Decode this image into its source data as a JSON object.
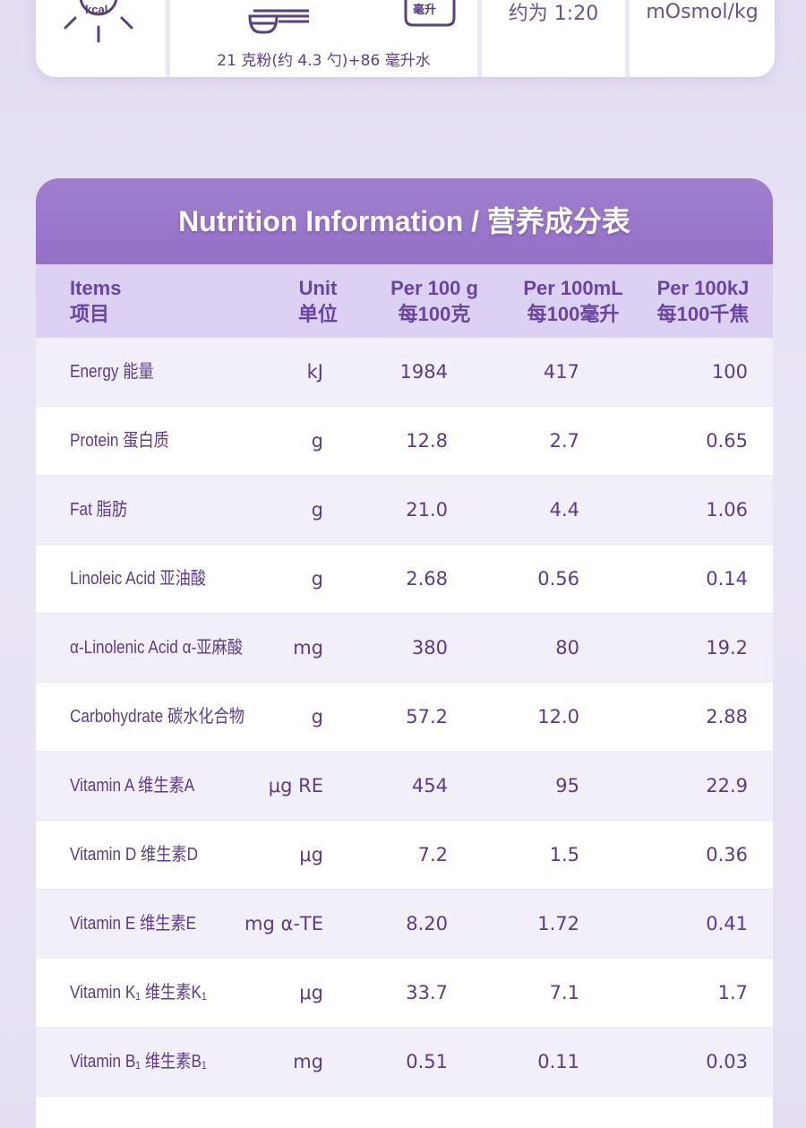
{
  "top_card": {
    "kcal_icon_text": "kcal",
    "cup_icon_text": "毫升",
    "formula": "21 克粉(约 4.3 勺)+86 毫升水",
    "ratio": "约为 1:20",
    "osmolality_unit": "mOsmol/kg"
  },
  "table": {
    "title": "Nutrition Information / 营养成分表",
    "headers": {
      "items_en": "Items",
      "items_cn": "项目",
      "unit_en": "Unit",
      "unit_cn": "单位",
      "per_g_en": "Per 100 g",
      "per_g_cn": "每100克",
      "per_ml_en": "Per 100mL",
      "per_ml_cn": "每100毫升",
      "per_kj_en": "Per 100kJ",
      "per_kj_cn": "每100千焦"
    },
    "rows": [
      {
        "name": "Energy 能量",
        "unit": "kJ",
        "per_g": "1984",
        "per_ml": "417",
        "per_kj": "100"
      },
      {
        "name": "Protein 蛋白质",
        "unit": "g",
        "per_g": "12.8",
        "per_ml": "2.7",
        "per_kj": "0.65"
      },
      {
        "name": "Fat 脂肪",
        "unit": "g",
        "per_g": "21.0",
        "per_ml": "4.4",
        "per_kj": "1.06"
      },
      {
        "name": "Linoleic Acid 亚油酸",
        "unit": "g",
        "per_g": "2.68",
        "per_ml": "0.56",
        "per_kj": "0.14"
      },
      {
        "name": "α-Linolenic Acid α-亚麻酸",
        "unit": "mg",
        "per_g": "380",
        "per_ml": "80",
        "per_kj": "19.2"
      },
      {
        "name": "Carbohydrate 碳水化合物",
        "unit": "g",
        "per_g": "57.2",
        "per_ml": "12.0",
        "per_kj": "2.88"
      },
      {
        "name": "Vitamin A 维生素A",
        "unit": "μg RE",
        "per_g": "454",
        "per_ml": "95",
        "per_kj": "22.9"
      },
      {
        "name": "Vitamin D 维生素D",
        "unit": "μg",
        "per_g": "7.2",
        "per_ml": "1.5",
        "per_kj": "0.36"
      },
      {
        "name": "Vitamin E 维生素E",
        "unit": "mg α-TE",
        "per_g": "8.20",
        "per_ml": "1.72",
        "per_kj": "0.41"
      },
      {
        "name": "Vitamin K₁ 维生素K₁",
        "unit": "μg",
        "per_g": "33.7",
        "per_ml": "7.1",
        "per_kj": "1.7"
      },
      {
        "name": "Vitamin B₁ 维生素B₁",
        "unit": "mg",
        "per_g": "0.51",
        "per_ml": "0.11",
        "per_kj": "0.03"
      },
      {
        "name": "",
        "unit": "",
        "per_g": "",
        "per_ml": "",
        "per_kj": ""
      }
    ]
  }
}
